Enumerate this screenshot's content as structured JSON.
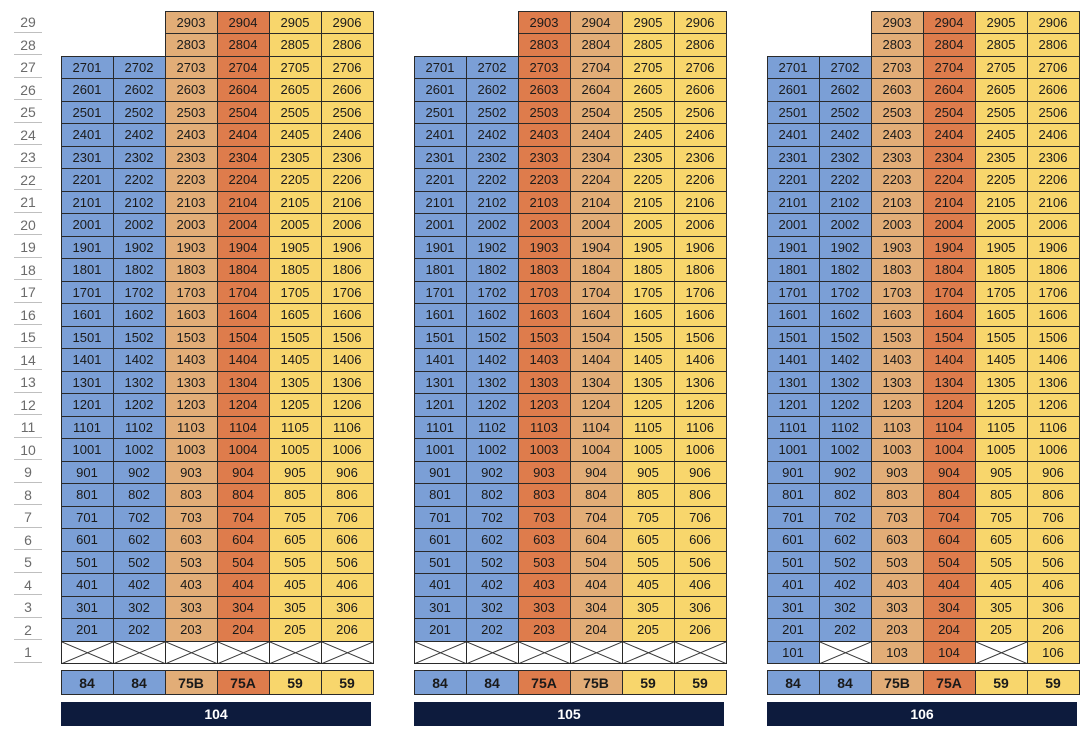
{
  "floors": [
    "29",
    "28",
    "27",
    "26",
    "25",
    "24",
    "23",
    "22",
    "21",
    "20",
    "19",
    "18",
    "17",
    "16",
    "15",
    "14",
    "13",
    "12",
    "11",
    "10",
    "9",
    "8",
    "7",
    "6",
    "5",
    "4",
    "3",
    "2",
    "1"
  ],
  "colors": {
    "84": "#7b9fd6",
    "75B": "#e2ad77",
    "75A": "#de7c4c",
    "59": "#f8d66c",
    "unit_empty": "#ffffff",
    "label_bar": "#0d1b3d"
  },
  "buildings": [
    {
      "name": "104",
      "column_types": [
        "84",
        "84",
        "75B",
        "75A",
        "59",
        "59"
      ],
      "floor1_units": [
        "",
        "",
        "",
        "",
        "",
        ""
      ],
      "units": [
        [
          "",
          "",
          "2903",
          "2904",
          "2905",
          "2906"
        ],
        [
          "",
          "",
          "2803",
          "2804",
          "2805",
          "2806"
        ],
        [
          "2701",
          "2702",
          "2703",
          "2704",
          "2705",
          "2706"
        ],
        [
          "2601",
          "2602",
          "2603",
          "2604",
          "2605",
          "2606"
        ],
        [
          "2501",
          "2502",
          "2503",
          "2504",
          "2505",
          "2506"
        ],
        [
          "2401",
          "2402",
          "2403",
          "2404",
          "2405",
          "2406"
        ],
        [
          "2301",
          "2302",
          "2303",
          "2304",
          "2305",
          "2306"
        ],
        [
          "2201",
          "2202",
          "2203",
          "2204",
          "2205",
          "2206"
        ],
        [
          "2101",
          "2102",
          "2103",
          "2104",
          "2105",
          "2106"
        ],
        [
          "2001",
          "2002",
          "2003",
          "2004",
          "2005",
          "2006"
        ],
        [
          "1901",
          "1902",
          "1903",
          "1904",
          "1905",
          "1906"
        ],
        [
          "1801",
          "1802",
          "1803",
          "1804",
          "1805",
          "1806"
        ],
        [
          "1701",
          "1702",
          "1703",
          "1704",
          "1705",
          "1706"
        ],
        [
          "1601",
          "1602",
          "1603",
          "1604",
          "1605",
          "1606"
        ],
        [
          "1501",
          "1502",
          "1503",
          "1504",
          "1505",
          "1506"
        ],
        [
          "1401",
          "1402",
          "1403",
          "1404",
          "1405",
          "1406"
        ],
        [
          "1301",
          "1302",
          "1303",
          "1304",
          "1305",
          "1306"
        ],
        [
          "1201",
          "1202",
          "1203",
          "1204",
          "1205",
          "1206"
        ],
        [
          "1101",
          "1102",
          "1103",
          "1104",
          "1105",
          "1106"
        ],
        [
          "1001",
          "1002",
          "1003",
          "1004",
          "1005",
          "1006"
        ],
        [
          "901",
          "902",
          "903",
          "904",
          "905",
          "906"
        ],
        [
          "801",
          "802",
          "803",
          "804",
          "805",
          "806"
        ],
        [
          "701",
          "702",
          "703",
          "704",
          "705",
          "706"
        ],
        [
          "601",
          "602",
          "603",
          "604",
          "605",
          "606"
        ],
        [
          "501",
          "502",
          "503",
          "504",
          "505",
          "506"
        ],
        [
          "401",
          "402",
          "403",
          "404",
          "405",
          "406"
        ],
        [
          "301",
          "302",
          "303",
          "304",
          "305",
          "306"
        ],
        [
          "201",
          "202",
          "203",
          "204",
          "205",
          "206"
        ]
      ]
    },
    {
      "name": "105",
      "column_types": [
        "84",
        "84",
        "75A",
        "75B",
        "59",
        "59"
      ],
      "floor1_units": [
        "",
        "",
        "",
        "",
        "",
        ""
      ],
      "units": [
        [
          "",
          "",
          "2903",
          "2904",
          "2905",
          "2906"
        ],
        [
          "",
          "",
          "2803",
          "2804",
          "2805",
          "2806"
        ],
        [
          "2701",
          "2702",
          "2703",
          "2704",
          "2705",
          "2706"
        ],
        [
          "2601",
          "2602",
          "2603",
          "2604",
          "2605",
          "2606"
        ],
        [
          "2501",
          "2502",
          "2503",
          "2504",
          "2505",
          "2506"
        ],
        [
          "2401",
          "2402",
          "2403",
          "2404",
          "2405",
          "2406"
        ],
        [
          "2301",
          "2302",
          "2303",
          "2304",
          "2305",
          "2306"
        ],
        [
          "2201",
          "2202",
          "2203",
          "2204",
          "2205",
          "2206"
        ],
        [
          "2101",
          "2102",
          "2103",
          "2104",
          "2105",
          "2106"
        ],
        [
          "2001",
          "2002",
          "2003",
          "2004",
          "2005",
          "2006"
        ],
        [
          "1901",
          "1902",
          "1903",
          "1904",
          "1905",
          "1906"
        ],
        [
          "1801",
          "1802",
          "1803",
          "1804",
          "1805",
          "1806"
        ],
        [
          "1701",
          "1702",
          "1703",
          "1704",
          "1705",
          "1706"
        ],
        [
          "1601",
          "1602",
          "1603",
          "1604",
          "1605",
          "1606"
        ],
        [
          "1501",
          "1502",
          "1503",
          "1504",
          "1505",
          "1506"
        ],
        [
          "1401",
          "1402",
          "1403",
          "1404",
          "1405",
          "1406"
        ],
        [
          "1301",
          "1302",
          "1303",
          "1304",
          "1305",
          "1306"
        ],
        [
          "1201",
          "1202",
          "1203",
          "1204",
          "1205",
          "1206"
        ],
        [
          "1101",
          "1102",
          "1103",
          "1104",
          "1105",
          "1106"
        ],
        [
          "1001",
          "1002",
          "1003",
          "1004",
          "1005",
          "1006"
        ],
        [
          "901",
          "902",
          "903",
          "904",
          "905",
          "906"
        ],
        [
          "801",
          "802",
          "803",
          "804",
          "805",
          "806"
        ],
        [
          "701",
          "702",
          "703",
          "704",
          "705",
          "706"
        ],
        [
          "601",
          "602",
          "603",
          "604",
          "605",
          "606"
        ],
        [
          "501",
          "502",
          "503",
          "504",
          "505",
          "506"
        ],
        [
          "401",
          "402",
          "403",
          "404",
          "405",
          "406"
        ],
        [
          "301",
          "302",
          "303",
          "304",
          "305",
          "306"
        ],
        [
          "201",
          "202",
          "203",
          "204",
          "205",
          "206"
        ]
      ]
    },
    {
      "name": "106",
      "column_types": [
        "84",
        "84",
        "75B",
        "75A",
        "59",
        "59"
      ],
      "floor1_units": [
        "101",
        "",
        "103",
        "104",
        "",
        "106"
      ],
      "units": [
        [
          "",
          "",
          "2903",
          "2904",
          "2905",
          "2906"
        ],
        [
          "",
          "",
          "2803",
          "2804",
          "2805",
          "2806"
        ],
        [
          "2701",
          "2702",
          "2703",
          "2704",
          "2705",
          "2706"
        ],
        [
          "2601",
          "2602",
          "2603",
          "2604",
          "2605",
          "2606"
        ],
        [
          "2501",
          "2502",
          "2503",
          "2504",
          "2505",
          "2506"
        ],
        [
          "2401",
          "2402",
          "2403",
          "2404",
          "2405",
          "2406"
        ],
        [
          "2301",
          "2302",
          "2303",
          "2304",
          "2305",
          "2306"
        ],
        [
          "2201",
          "2202",
          "2203",
          "2204",
          "2205",
          "2206"
        ],
        [
          "2101",
          "2102",
          "2103",
          "2104",
          "2105",
          "2106"
        ],
        [
          "2001",
          "2002",
          "2003",
          "2004",
          "2005",
          "2006"
        ],
        [
          "1901",
          "1902",
          "1903",
          "1904",
          "1905",
          "1906"
        ],
        [
          "1801",
          "1802",
          "1803",
          "1804",
          "1805",
          "1806"
        ],
        [
          "1701",
          "1702",
          "1703",
          "1704",
          "1705",
          "1706"
        ],
        [
          "1601",
          "1602",
          "1603",
          "1604",
          "1605",
          "1606"
        ],
        [
          "1501",
          "1502",
          "1503",
          "1504",
          "1505",
          "1506"
        ],
        [
          "1401",
          "1402",
          "1403",
          "1404",
          "1405",
          "1406"
        ],
        [
          "1301",
          "1302",
          "1303",
          "1304",
          "1305",
          "1306"
        ],
        [
          "1201",
          "1202",
          "1203",
          "1204",
          "1205",
          "1206"
        ],
        [
          "1101",
          "1102",
          "1103",
          "1104",
          "1105",
          "1106"
        ],
        [
          "1001",
          "1002",
          "1003",
          "1004",
          "1005",
          "1006"
        ],
        [
          "901",
          "902",
          "903",
          "904",
          "905",
          "906"
        ],
        [
          "801",
          "802",
          "803",
          "804",
          "805",
          "806"
        ],
        [
          "701",
          "702",
          "703",
          "704",
          "705",
          "706"
        ],
        [
          "601",
          "602",
          "603",
          "604",
          "605",
          "606"
        ],
        [
          "501",
          "502",
          "503",
          "504",
          "505",
          "506"
        ],
        [
          "401",
          "402",
          "403",
          "404",
          "405",
          "406"
        ],
        [
          "301",
          "302",
          "303",
          "304",
          "305",
          "306"
        ],
        [
          "201",
          "202",
          "203",
          "204",
          "205",
          "206"
        ]
      ]
    }
  ]
}
